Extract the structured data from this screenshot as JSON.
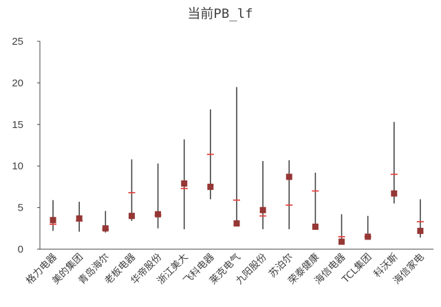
{
  "chart_data": {
    "type": "range-dot",
    "title": "当前PB_lf",
    "xlabel": "",
    "ylabel": "",
    "ylim": [
      0,
      25
    ],
    "yticks": [
      0,
      5,
      10,
      15,
      20,
      25
    ],
    "grid": false,
    "legend": "none",
    "categories": [
      "格力电器",
      "美的集团",
      "青岛海尔",
      "老板电器",
      "华帝股份",
      "浙江美大",
      "飞科电器",
      "莱克电气",
      "九阳股份",
      "苏泊尔",
      "荣泰健康",
      "海信电器",
      "TCL集团",
      "科沃斯",
      "海信家电"
    ],
    "series": [
      {
        "role": "high",
        "values": [
          5.9,
          5.7,
          4.6,
          10.8,
          10.3,
          13.2,
          16.8,
          19.5,
          10.6,
          10.7,
          9.2,
          4.2,
          4.0,
          15.3,
          6.0
        ]
      },
      {
        "role": "low",
        "values": [
          2.2,
          2.1,
          2.0,
          3.4,
          2.5,
          2.4,
          6.0,
          2.8,
          2.4,
          2.4,
          2.6,
          0.7,
          1.2,
          5.5,
          1.4
        ]
      },
      {
        "role": "median",
        "values": [
          3.0,
          3.4,
          2.4,
          6.8,
          4.1,
          7.3,
          11.4,
          5.9,
          4.0,
          5.3,
          7.0,
          1.5,
          1.5,
          9.0,
          3.3
        ]
      },
      {
        "role": "current",
        "values": [
          3.5,
          3.7,
          2.5,
          4.0,
          4.2,
          7.9,
          7.5,
          3.1,
          4.7,
          8.7,
          2.7,
          0.9,
          1.5,
          6.7,
          2.2
        ]
      }
    ],
    "colors": {
      "range": "#404040",
      "median": "#e8423f",
      "current": "#953735",
      "axis": "#404040"
    }
  }
}
